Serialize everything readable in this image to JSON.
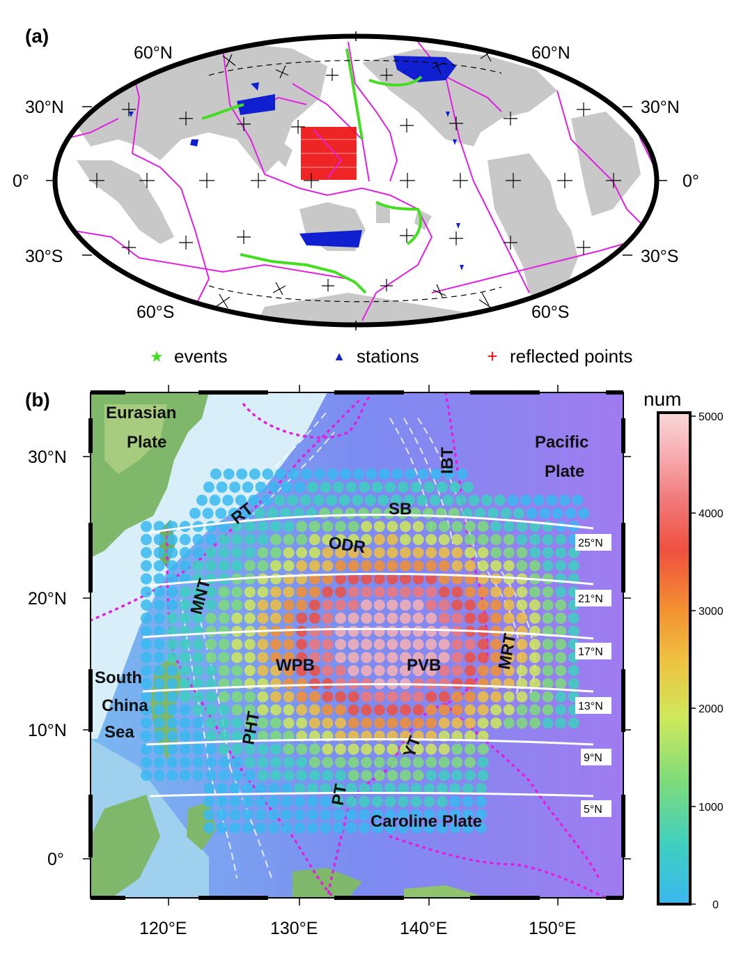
{
  "panel_a": {
    "label": "(a)",
    "lat_labels": {
      "n60": "60°N",
      "n30": "30°N",
      "eq": "0°",
      "s30": "30°S",
      "s60": "60°S"
    },
    "legend": [
      {
        "symbol": "★",
        "text": "events",
        "color": "#44dd22"
      },
      {
        "symbol": "▲",
        "text": "stations",
        "color": "#1020d0"
      },
      {
        "symbol": "+",
        "text": "reflected points",
        "color": "#ee1111"
      }
    ],
    "colors": {
      "land": "#c8c8c8",
      "boundaries": "#e020e0",
      "events": "#44dd22",
      "stations": "#1020d0",
      "reflected": "#ee1111"
    }
  },
  "panel_b": {
    "label": "(b)",
    "y_ticks": [
      "30°N",
      "20°N",
      "10°N",
      "0°"
    ],
    "x_ticks": [
      "120°E",
      "130°E",
      "140°E",
      "150°E"
    ],
    "region_labels": {
      "eurasian": [
        "Eurasian",
        "Plate"
      ],
      "pacific": [
        "Pacific",
        "Plate"
      ],
      "south_china_sea": [
        "South",
        "China",
        "Sea"
      ],
      "caroline": "Caroline Plate",
      "rt": "RT",
      "sb": "SB",
      "odr": "ODR",
      "ibt": "IBT",
      "mnt": "MNT",
      "wpb": "WPB",
      "pvb": "PVB",
      "mrt": "MRT",
      "pht": "PHT",
      "yt": "YT",
      "pt": "PT"
    },
    "profile_labels": [
      "25°N",
      "21°N",
      "17°N",
      "13°N",
      "9°N",
      "5°N"
    ],
    "colorbar": {
      "title": "num",
      "ticks": [
        "5000",
        "4000",
        "3000",
        "2000",
        "1000",
        "0"
      ],
      "stops": [
        "#3ab8f0",
        "#3ecfc0",
        "#7edc7a",
        "#cfe85a",
        "#f0c040",
        "#f39030",
        "#f05040",
        "#f07878",
        "#f7b0b4",
        "#fbd8d8"
      ]
    }
  }
}
